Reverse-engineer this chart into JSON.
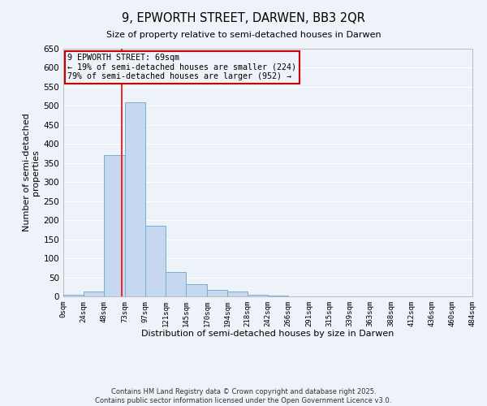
{
  "title": "9, EPWORTH STREET, DARWEN, BB3 2QR",
  "subtitle": "Size of property relative to semi-detached houses in Darwen",
  "xlabel": "Distribution of semi-detached houses by size in Darwen",
  "ylabel": "Number of semi-detached\nproperties",
  "bin_edges": [
    0,
    24,
    48,
    73,
    97,
    121,
    145,
    170,
    194,
    218,
    242,
    266,
    291,
    315,
    339,
    363,
    388,
    412,
    436,
    460,
    484
  ],
  "bin_labels": [
    "0sqm",
    "24sqm",
    "48sqm",
    "73sqm",
    "97sqm",
    "121sqm",
    "145sqm",
    "170sqm",
    "194sqm",
    "218sqm",
    "242sqm",
    "266sqm",
    "291sqm",
    "315sqm",
    "339sqm",
    "363sqm",
    "388sqm",
    "412sqm",
    "436sqm",
    "460sqm",
    "484sqm"
  ],
  "counts": [
    5,
    12,
    370,
    510,
    185,
    65,
    32,
    17,
    12,
    5,
    2,
    0,
    0,
    0,
    0,
    0,
    0,
    0,
    0,
    0
  ],
  "bar_color": "#c5d8f0",
  "bar_edge_color": "#7aadd4",
  "vline_x": 69,
  "vline_color": "red",
  "annotation_text": "9 EPWORTH STREET: 69sqm\n← 19% of semi-detached houses are smaller (224)\n79% of semi-detached houses are larger (952) →",
  "annotation_box_color": "#cc0000",
  "ylim": [
    0,
    650
  ],
  "yticks": [
    0,
    50,
    100,
    150,
    200,
    250,
    300,
    350,
    400,
    450,
    500,
    550,
    600,
    650
  ],
  "background_color": "#eef2f9",
  "grid_color": "#ffffff",
  "footer_line1": "Contains HM Land Registry data © Crown copyright and database right 2025.",
  "footer_line2": "Contains public sector information licensed under the Open Government Licence v3.0."
}
